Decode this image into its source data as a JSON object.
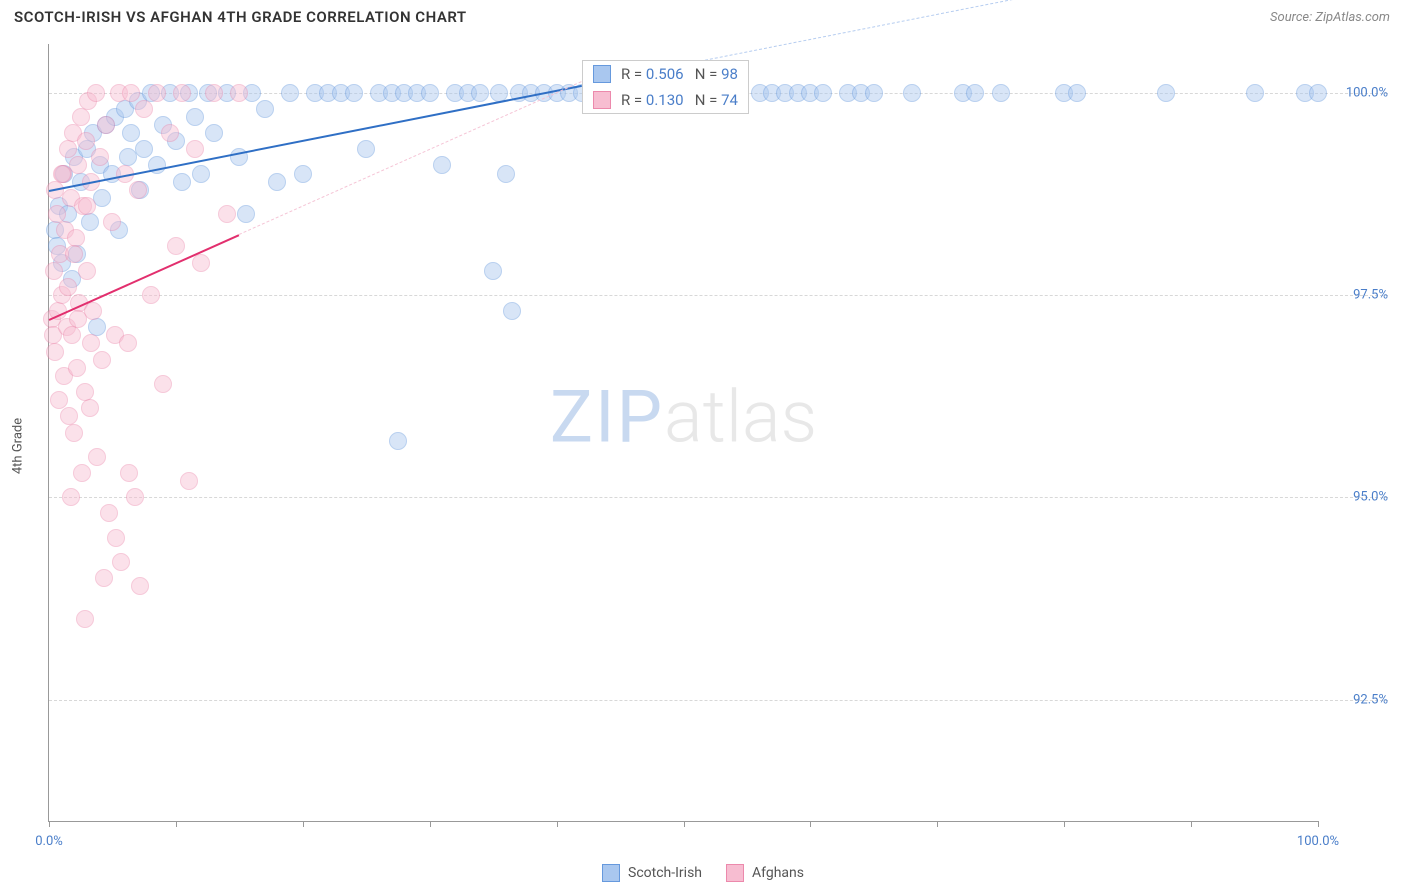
{
  "header": {
    "title": "SCOTCH-IRISH VS AFGHAN 4TH GRADE CORRELATION CHART",
    "source": "Source: ZipAtlas.com"
  },
  "chart": {
    "type": "scatter",
    "ylabel": "4th Grade",
    "xlim": [
      0,
      100
    ],
    "ylim": [
      91.0,
      100.6
    ],
    "xtick_positions": [
      0,
      10,
      20,
      30,
      40,
      50,
      60,
      70,
      80,
      90,
      100
    ],
    "xtick_labels": {
      "0": "0.0%",
      "100": "100.0%"
    },
    "ytick_positions": [
      92.5,
      95.0,
      97.5,
      100.0
    ],
    "ytick_labels": [
      "92.5%",
      "95.0%",
      "97.5%",
      "100.0%"
    ],
    "background_color": "#ffffff",
    "grid_color": "#d8d8d8",
    "axis_color": "#999999",
    "label_color": "#4a7ec9",
    "marker_radius": 9,
    "marker_opacity": 0.45,
    "series": [
      {
        "name": "Scotch-Irish",
        "fill_color": "#a9c7ef",
        "stroke_color": "#6699dd",
        "trend": {
          "x1": 0,
          "y1": 98.8,
          "x2": 42,
          "y2": 100.1,
          "extend_x2": 100,
          "color": "#2f6fc5",
          "width": 2.5,
          "dash_color": "#b6cdf0"
        },
        "stats": {
          "R": "0.506",
          "N": "98"
        },
        "points": [
          [
            0.5,
            98.3
          ],
          [
            0.6,
            98.1
          ],
          [
            0.8,
            98.6
          ],
          [
            1.0,
            97.9
          ],
          [
            1.2,
            99.0
          ],
          [
            1.5,
            98.5
          ],
          [
            1.8,
            97.7
          ],
          [
            2.0,
            99.2
          ],
          [
            2.2,
            98.0
          ],
          [
            2.5,
            98.9
          ],
          [
            3.0,
            99.3
          ],
          [
            3.2,
            98.4
          ],
          [
            3.5,
            99.5
          ],
          [
            3.8,
            97.1
          ],
          [
            4.0,
            99.1
          ],
          [
            4.2,
            98.7
          ],
          [
            4.5,
            99.6
          ],
          [
            5.0,
            99.0
          ],
          [
            5.2,
            99.7
          ],
          [
            5.5,
            98.3
          ],
          [
            6.0,
            99.8
          ],
          [
            6.2,
            99.2
          ],
          [
            6.5,
            99.5
          ],
          [
            7.0,
            99.9
          ],
          [
            7.2,
            98.8
          ],
          [
            7.5,
            99.3
          ],
          [
            8.0,
            100.0
          ],
          [
            8.5,
            99.1
          ],
          [
            9.0,
            99.6
          ],
          [
            9.5,
            100.0
          ],
          [
            10.0,
            99.4
          ],
          [
            10.5,
            98.9
          ],
          [
            11.0,
            100.0
          ],
          [
            11.5,
            99.7
          ],
          [
            12.0,
            99.0
          ],
          [
            12.5,
            100.0
          ],
          [
            13.0,
            99.5
          ],
          [
            14.0,
            100.0
          ],
          [
            15.0,
            99.2
          ],
          [
            15.5,
            98.5
          ],
          [
            16.0,
            100.0
          ],
          [
            17.0,
            99.8
          ],
          [
            18.0,
            98.9
          ],
          [
            19.0,
            100.0
          ],
          [
            20.0,
            99.0
          ],
          [
            21.0,
            100.0
          ],
          [
            22.0,
            100.0
          ],
          [
            23.0,
            100.0
          ],
          [
            24.0,
            100.0
          ],
          [
            25.0,
            99.3
          ],
          [
            26.0,
            100.0
          ],
          [
            27.0,
            100.0
          ],
          [
            27.5,
            95.7
          ],
          [
            28.0,
            100.0
          ],
          [
            29.0,
            100.0
          ],
          [
            30.0,
            100.0
          ],
          [
            31.0,
            99.1
          ],
          [
            32.0,
            100.0
          ],
          [
            33.0,
            100.0
          ],
          [
            34.0,
            100.0
          ],
          [
            35.0,
            97.8
          ],
          [
            35.5,
            100.0
          ],
          [
            36.0,
            99.0
          ],
          [
            36.5,
            97.3
          ],
          [
            37.0,
            100.0
          ],
          [
            38.0,
            100.0
          ],
          [
            39.0,
            100.0
          ],
          [
            40.0,
            100.0
          ],
          [
            41.0,
            100.0
          ],
          [
            42.0,
            100.0
          ],
          [
            43.0,
            100.0
          ],
          [
            45.0,
            100.0
          ],
          [
            47.0,
            100.0
          ],
          [
            48.0,
            100.0
          ],
          [
            49.0,
            100.0
          ],
          [
            50.0,
            100.0
          ],
          [
            51.0,
            100.0
          ],
          [
            52.0,
            100.0
          ],
          [
            54.0,
            100.0
          ],
          [
            56.0,
            100.0
          ],
          [
            57.0,
            100.0
          ],
          [
            58.0,
            100.0
          ],
          [
            59.0,
            100.0
          ],
          [
            60.0,
            100.0
          ],
          [
            61.0,
            100.0
          ],
          [
            63.0,
            100.0
          ],
          [
            64.0,
            100.0
          ],
          [
            65.0,
            100.0
          ],
          [
            68.0,
            100.0
          ],
          [
            72.0,
            100.0
          ],
          [
            73.0,
            100.0
          ],
          [
            75.0,
            100.0
          ],
          [
            80.0,
            100.0
          ],
          [
            81.0,
            100.0
          ],
          [
            88.0,
            100.0
          ],
          [
            95.0,
            100.0
          ],
          [
            99.0,
            100.0
          ],
          [
            100.0,
            100.0
          ]
        ]
      },
      {
        "name": "Afghans",
        "fill_color": "#f7bdd1",
        "stroke_color": "#ec89ac",
        "trend": {
          "x1": 0,
          "y1": 97.2,
          "x2": 15,
          "y2": 98.25,
          "extend_x2": 42,
          "color": "#e22f6e",
          "width": 2.5,
          "dash_color": "#f5c5d6"
        },
        "stats": {
          "R": "0.130",
          "N": "74"
        },
        "points": [
          [
            0.2,
            97.2
          ],
          [
            0.3,
            97.0
          ],
          [
            0.4,
            97.8
          ],
          [
            0.5,
            96.8
          ],
          [
            0.6,
            98.5
          ],
          [
            0.7,
            97.3
          ],
          [
            0.8,
            96.2
          ],
          [
            0.9,
            98.0
          ],
          [
            1.0,
            97.5
          ],
          [
            1.1,
            99.0
          ],
          [
            1.2,
            96.5
          ],
          [
            1.3,
            98.3
          ],
          [
            1.4,
            97.1
          ],
          [
            1.5,
            99.3
          ],
          [
            1.6,
            96.0
          ],
          [
            1.7,
            98.7
          ],
          [
            1.8,
            97.0
          ],
          [
            1.9,
            99.5
          ],
          [
            2.0,
            95.8
          ],
          [
            2.1,
            98.2
          ],
          [
            2.2,
            96.6
          ],
          [
            2.3,
            99.1
          ],
          [
            2.4,
            97.4
          ],
          [
            2.5,
            99.7
          ],
          [
            2.6,
            95.3
          ],
          [
            2.7,
            98.6
          ],
          [
            2.8,
            96.3
          ],
          [
            2.9,
            99.4
          ],
          [
            3.0,
            97.8
          ],
          [
            3.1,
            99.9
          ],
          [
            3.2,
            96.1
          ],
          [
            3.3,
            98.9
          ],
          [
            3.5,
            97.3
          ],
          [
            3.7,
            100.0
          ],
          [
            3.8,
            95.5
          ],
          [
            4.0,
            99.2
          ],
          [
            4.2,
            96.7
          ],
          [
            4.5,
            99.6
          ],
          [
            4.7,
            94.8
          ],
          [
            5.0,
            98.4
          ],
          [
            5.2,
            97.0
          ],
          [
            5.5,
            100.0
          ],
          [
            5.7,
            94.2
          ],
          [
            6.0,
            99.0
          ],
          [
            6.2,
            96.9
          ],
          [
            6.5,
            100.0
          ],
          [
            6.8,
            95.0
          ],
          [
            7.0,
            98.8
          ],
          [
            7.2,
            93.9
          ],
          [
            7.5,
            99.8
          ],
          [
            8.0,
            97.5
          ],
          [
            8.5,
            100.0
          ],
          [
            9.0,
            96.4
          ],
          [
            9.5,
            99.5
          ],
          [
            10.0,
            98.1
          ],
          [
            10.5,
            100.0
          ],
          [
            11.0,
            95.2
          ],
          [
            11.5,
            99.3
          ],
          [
            12.0,
            97.9
          ],
          [
            13.0,
            100.0
          ],
          [
            14.0,
            98.5
          ],
          [
            15.0,
            100.0
          ],
          [
            4.3,
            94.0
          ],
          [
            5.3,
            94.5
          ],
          [
            2.8,
            93.5
          ],
          [
            3.3,
            96.9
          ],
          [
            6.3,
            95.3
          ],
          [
            1.7,
            95.0
          ],
          [
            2.0,
            98.0
          ],
          [
            0.5,
            98.8
          ],
          [
            1.0,
            99.0
          ],
          [
            1.5,
            97.6
          ],
          [
            2.3,
            97.2
          ],
          [
            3.0,
            98.6
          ]
        ]
      }
    ],
    "legend": [
      {
        "label": "Scotch-Irish",
        "fill": "#a9c7ef",
        "stroke": "#6699dd"
      },
      {
        "label": "Afghans",
        "fill": "#f7bdd1",
        "stroke": "#ec89ac"
      }
    ],
    "watermark": {
      "part1": "ZIP",
      "part2": "atlas"
    }
  }
}
